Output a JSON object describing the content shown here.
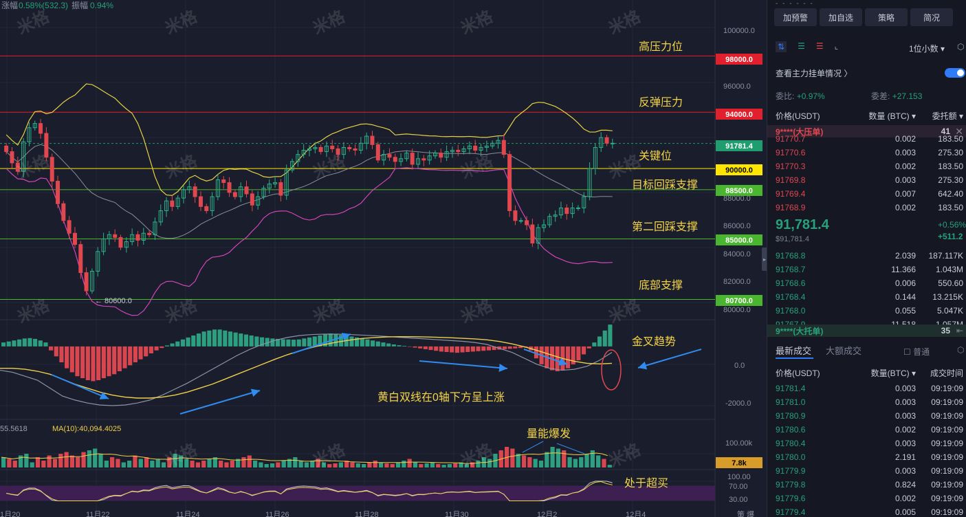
{
  "chart_header": {
    "change_label": "涨幅",
    "change_value": "0.58%(532.3)",
    "amplitude_label": "振幅",
    "amplitude_value": "0.94%"
  },
  "watermark": "米格",
  "price_axis": [
    "100000.0",
    "96000.0",
    "88000.0",
    "86000.0",
    "84000.0",
    "82000.0",
    "80000.0"
  ],
  "macd_axis": [
    "0.0",
    "-2000.0"
  ],
  "volume_axis": [
    "100.00k"
  ],
  "rsi_axis": [
    "100.00",
    "70.00",
    "30.00"
  ],
  "price_tags": [
    {
      "label": "98000.0",
      "color": "#e0202d",
      "text_color": "#ffffff"
    },
    {
      "label": "94000.0",
      "color": "#e0202d",
      "text_color": "#ffffff"
    },
    {
      "label": "91781.4",
      "color": "#1f9d6e",
      "text_color": "#ffffff"
    },
    {
      "label": "90000.0",
      "color": "#ffe600",
      "text_color": "#000000"
    },
    {
      "label": "88500.0",
      "color": "#4ab52e",
      "text_color": "#ffffff"
    },
    {
      "label": "85000.0",
      "color": "#4ab52e",
      "text_color": "#ffffff"
    },
    {
      "label": "80700.0",
      "color": "#4ab52e",
      "text_color": "#ffffff"
    },
    {
      "label": "7.8k",
      "color": "#d89c2a",
      "text_color": "#000000"
    }
  ],
  "annotations": {
    "high_pressure": "高压力位",
    "rebound_pressure": "反弹压力",
    "key_level": "关键位",
    "target_support": "目标回踩支撑",
    "second_support": "第二回踩支撑",
    "bottom_support": "底部支撑",
    "golden_cross": "金叉趋势",
    "macd_note": "黄白双线在0轴下方呈上涨",
    "volume_burst": "量能爆发",
    "overbought": "处于超买",
    "low_marker": "← 80600.0"
  },
  "volume_header": {
    "left_value": "55.5618",
    "ma_label": "MA(10):40,094.4025"
  },
  "date_axis": [
    "1月20",
    "11月22",
    "11月24",
    "11月26",
    "11月28",
    "11月30",
    "12月2",
    "12月4"
  ],
  "corner_label": "策 爆",
  "panel": {
    "buttons": [
      "加预警",
      "加自选",
      "策略",
      "简况"
    ],
    "precision": "1位小数",
    "view_orders": "查看主力挂单情况",
    "ratio_label": "委比:",
    "ratio_value": "+0.97%",
    "diff_label": "委差:",
    "diff_value": "+27.153",
    "columns": [
      "价格(USDT)",
      "数量 (BTC)",
      "委托额"
    ],
    "big_ask": {
      "name": "9****(大压单)",
      "value": "41"
    },
    "asks": [
      {
        "price": "91770.7",
        "qty": "0.002",
        "amt": "183.50"
      },
      {
        "price": "91770.6",
        "qty": "0.003",
        "amt": "275.30"
      },
      {
        "price": "91770.3",
        "qty": "0.002",
        "amt": "183.50"
      },
      {
        "price": "91769.8",
        "qty": "0.003",
        "amt": "275.30"
      },
      {
        "price": "91769.4",
        "qty": "0.007",
        "amt": "642.40"
      },
      {
        "price": "91768.9",
        "qty": "0.002",
        "amt": "183.50"
      }
    ],
    "last_price": "91,781.4",
    "last_price_sub": "$91,781.4",
    "change_pct": "+0.56%",
    "change_abs": "+511.2",
    "bids": [
      {
        "price": "91768.8",
        "qty": "2.039",
        "amt": "187.117K"
      },
      {
        "price": "91768.7",
        "qty": "11.366",
        "amt": "1.043M"
      },
      {
        "price": "91768.6",
        "qty": "0.006",
        "amt": "550.60"
      },
      {
        "price": "91768.4",
        "qty": "0.144",
        "amt": "13.215K"
      },
      {
        "price": "91768.0",
        "qty": "0.055",
        "amt": "5.047K"
      },
      {
        "price": "91767.9",
        "qty": "11.518",
        "amt": "1.057M"
      }
    ],
    "big_bid": {
      "name": "9****(大托单)",
      "value": "35"
    },
    "trade_tabs": [
      "最新成交",
      "大额成交"
    ],
    "normal_label": "普通",
    "trade_columns": [
      "价格(USDT)",
      "数量(BTC)",
      "成交时间"
    ],
    "trades": [
      {
        "price": "91781.4",
        "qty": "0.003",
        "time": "09:19:09"
      },
      {
        "price": "91781.0",
        "qty": "0.003",
        "time": "09:19:09"
      },
      {
        "price": "91780.9",
        "qty": "0.003",
        "time": "09:19:09"
      },
      {
        "price": "91780.6",
        "qty": "0.002",
        "time": "09:19:09"
      },
      {
        "price": "91780.4",
        "qty": "0.003",
        "time": "09:19:09"
      },
      {
        "price": "91780.0",
        "qty": "2.191",
        "time": "09:19:09"
      },
      {
        "price": "91779.9",
        "qty": "0.003",
        "time": "09:19:09"
      },
      {
        "price": "91779.8",
        "qty": "0.824",
        "time": "09:19:09"
      },
      {
        "price": "91779.6",
        "qty": "0.002",
        "time": "09:19:09"
      },
      {
        "price": "91779.4",
        "qty": "0.005",
        "time": "09:19:09"
      }
    ]
  },
  "chart_data": {
    "type": "candlestick",
    "symbol_price": 91781.4,
    "price_range": [
      79500,
      101000
    ],
    "levels": [
      {
        "price": 98000,
        "color": "#e0202d",
        "label": "高压力位"
      },
      {
        "price": 94000,
        "color": "#e0202d",
        "label": "反弹压力"
      },
      {
        "price": 90000,
        "color": "#ffe600",
        "label": "关键位"
      },
      {
        "price": 88500,
        "color": "#4ab52e",
        "label": "目标回踩支撑"
      },
      {
        "price": 85000,
        "color": "#4ab52e",
        "label": "第二回踩支撑"
      },
      {
        "price": 80700,
        "color": "#4ab52e",
        "label": "底部支撑"
      }
    ],
    "closes": [
      91200,
      90400,
      89800,
      91900,
      92900,
      93200,
      92500,
      90800,
      89100,
      87500,
      86300,
      85400,
      84600,
      82600,
      81300,
      82700,
      84100,
      85000,
      85300,
      85100,
      84400,
      84800,
      85300,
      84900,
      85400,
      85300,
      86200,
      87000,
      87700,
      87300,
      87900,
      88500,
      88700,
      88000,
      87300,
      87000,
      88000,
      89200,
      89000,
      88300,
      88000,
      88700,
      88200,
      87400,
      88000,
      88600,
      88900,
      89000,
      88100,
      89900,
      90500,
      91000,
      91300,
      91400,
      91500,
      91200,
      91600,
      91400,
      91000,
      91500,
      91400,
      91300,
      91800,
      92300,
      91700,
      90600,
      91000,
      90800,
      90500,
      90700,
      91100,
      90300,
      90700,
      90600,
      90900,
      91100,
      90800,
      91200,
      91300,
      91200,
      91400,
      91600,
      91300,
      91500,
      91600,
      91800,
      92000,
      91000,
      87000,
      86300,
      86300,
      86000,
      84700,
      85800,
      86000,
      86600,
      86700,
      87200,
      86800,
      87200,
      87200,
      88000,
      90000,
      91500,
      92200,
      91800,
      91800
    ],
    "macd_range": [
      -3500,
      1000
    ],
    "macd_hist": [
      200,
      250,
      300,
      350,
      400,
      420,
      380,
      300,
      200,
      -200,
      -500,
      -800,
      -1100,
      -1300,
      -1500,
      -1600,
      -1700,
      -1750,
      -1700,
      -1600,
      -1500,
      -1400,
      -1250,
      -1100,
      -950,
      -800,
      -650,
      -500,
      -350,
      -200,
      -80,
      50,
      150,
      250,
      350,
      450,
      550,
      650,
      750,
      800,
      850,
      850,
      800,
      750,
      700,
      650,
      600,
      550,
      500,
      460,
      430,
      400,
      380,
      360,
      350,
      340,
      350,
      400,
      450,
      500,
      550,
      600,
      650,
      620,
      580,
      540,
      500,
      450,
      400,
      350,
      300,
      250,
      200,
      150,
      100,
      60,
      30,
      -20,
      -60,
      -100,
      -140,
      -180,
      -220,
      -260,
      -280,
      -300,
      -320,
      -300,
      -280,
      -260,
      -240,
      -220,
      -200,
      -180,
      -160,
      -140,
      -120,
      -100,
      -80,
      -60,
      -200,
      -600,
      -900,
      -1100,
      -1200,
      -1250,
      -1200,
      -1100,
      -900,
      -700,
      -400,
      -100,
      200,
      500,
      800,
      1100
    ],
    "dif_line": [
      -1200,
      -1300,
      -1500,
      -1700,
      -2100,
      -2500,
      -2700,
      -2850,
      -2950,
      -2980,
      -2950,
      -2850,
      -2700,
      -2450,
      -2150,
      -1850,
      -1500,
      -1150,
      -800,
      -450,
      -150,
      100,
      300,
      450,
      550,
      600,
      620,
      620,
      600,
      570,
      540,
      500,
      460,
      420,
      380,
      340,
      300,
      260,
      200,
      100,
      -100,
      -300,
      -600,
      -900,
      -1100,
      -1200,
      -1150,
      -1000,
      -700,
      -300
    ],
    "dea_line": [
      -1100,
      -1100,
      -1150,
      -1250,
      -1400,
      -1650,
      -1900,
      -2100,
      -2300,
      -2450,
      -2550,
      -2600,
      -2600,
      -2550,
      -2450,
      -2300,
      -2100,
      -1900,
      -1650,
      -1400,
      -1150,
      -900,
      -650,
      -420,
      -220,
      -50,
      100,
      220,
      320,
      400,
      450,
      480,
      490,
      490,
      480,
      460,
      440,
      410,
      380,
      330,
      250,
      130,
      -20,
      -200,
      -400,
      -600,
      -750,
      -850,
      -880,
      -850
    ],
    "volume_range": [
      0,
      130000
    ],
    "volume_values": [
      30000,
      25000,
      20000,
      35000,
      40000,
      15000,
      30000,
      20000,
      35000,
      25000,
      40000,
      45000,
      35000,
      30000,
      45000,
      50000,
      55000,
      40000,
      20000,
      30000,
      25000,
      15000,
      20000,
      35000,
      25000,
      30000,
      20000,
      25000,
      15000,
      30000,
      40000,
      35000,
      25000,
      20000,
      15000,
      20000,
      25000,
      30000,
      20000,
      15000,
      20000,
      25000,
      30000,
      35000,
      20000,
      15000,
      10000,
      12000,
      15000,
      20000,
      25000,
      30000,
      20000,
      15000,
      20000,
      25000,
      15000,
      10000,
      12000,
      15000,
      20000,
      15000,
      12000,
      10000,
      15000,
      20000,
      15000,
      12000,
      10000,
      15000,
      20000,
      25000,
      15000,
      10000,
      12000,
      15000,
      10000,
      8000,
      10000,
      12000,
      15000,
      10000,
      15000,
      20000,
      30000,
      25000,
      40000,
      50000,
      60000,
      55000,
      40000,
      35000,
      30000,
      25000,
      20000,
      45000,
      60000,
      55000,
      50000,
      30000,
      25000,
      30000,
      40000,
      50000,
      35000,
      25000,
      7800
    ],
    "rsi_range": [
      0,
      100
    ],
    "rsi_band": [
      30,
      70
    ]
  }
}
